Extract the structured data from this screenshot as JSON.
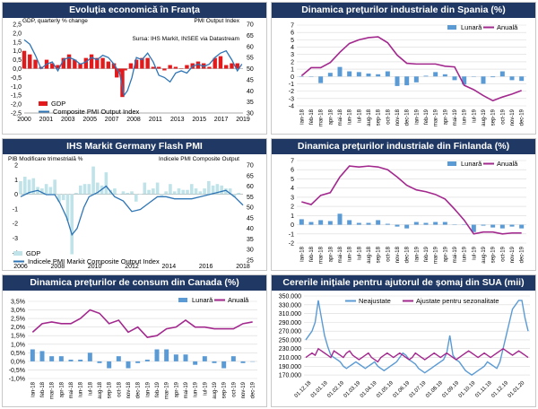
{
  "colors": {
    "title_bg": "#1f3864",
    "title_text": "#ffffff",
    "bar_blue": "#5b9bd5",
    "line_purple": "#a3288e",
    "line_blue": "#2e75b6",
    "bar_red": "#e31a1c",
    "bar_light": "#bfe3e8",
    "grid": "#d9d9d9"
  },
  "panels": {
    "france": {
      "title": "Evoluția economică în Franța"
    },
    "spain": {
      "title": "Dinamica prețurilor industriale din Spania (%)"
    },
    "germany": {
      "title": "IHS Markit Germany Flash PMI"
    },
    "finland": {
      "title": "Dinamica prețurilor industriale din Finlanda (%)"
    },
    "canada": {
      "title": "Dinamica prețurilor de consum din Canada (%)"
    },
    "usa": {
      "title": "Cererile inițiale pentru ajutorul de șomaj din SUA (mii)"
    }
  },
  "chart_data": [
    {
      "id": "france",
      "type": "bar",
      "ylabel_left": "GDP, quarterly % change",
      "ylabel_right": "PMI Output Index",
      "annotation": "Sursa: IHS Markit, INSEE via Datastream",
      "ylim_left": [
        -2.5,
        2.5
      ],
      "ylim_right": [
        30,
        70
      ],
      "yticks_left": [
        "2,5",
        "2,0",
        "1,5",
        "1,0",
        "0,5",
        "0,0",
        "-0,5",
        "-1,0",
        "-1,5",
        "-2,0",
        "-2,5"
      ],
      "yticks_right": [
        "70",
        "65",
        "60",
        "55",
        "50",
        "45",
        "40",
        "35",
        "30"
      ],
      "x_range": [
        2000,
        2019.5
      ],
      "xticks": [
        "2000",
        "2001",
        "2003",
        "2005",
        "2007",
        "2008",
        "2011",
        "2013",
        "2015",
        "2017",
        "2019"
      ],
      "legend": [
        "GDP",
        "Composite PMI Output Index"
      ],
      "series": [
        {
          "name": "GDP",
          "kind": "bar",
          "axis": "left",
          "x": [
            2000,
            2000.5,
            2001,
            2001.5,
            2002,
            2002.5,
            2003,
            2003.5,
            2004,
            2004.5,
            2005,
            2005.5,
            2006,
            2006.5,
            2007,
            2007.5,
            2008,
            2008.25,
            2008.5,
            2008.75,
            2009,
            2009.5,
            2010,
            2010.5,
            2011,
            2011.5,
            2012,
            2012.5,
            2013,
            2013.5,
            2014,
            2014.5,
            2015,
            2015.5,
            2016,
            2016.5,
            2017,
            2017.5,
            2018,
            2018.5,
            2019
          ],
          "values": [
            1.0,
            0.8,
            0.5,
            0.1,
            0.5,
            0.3,
            0.2,
            0.6,
            0.8,
            0.5,
            0.3,
            0.6,
            0.8,
            0.6,
            0.6,
            0.4,
            0.3,
            -0.5,
            -0.2,
            -1.6,
            -0.1,
            0.3,
            0.5,
            0.6,
            0.6,
            0.1,
            0.1,
            -0.1,
            0.2,
            0.1,
            0.0,
            0.2,
            0.3,
            0.4,
            0.3,
            0.1,
            0.6,
            0.7,
            0.2,
            0.3,
            0.3
          ]
        },
        {
          "name": "Composite PMI Output Index",
          "kind": "line",
          "axis": "right",
          "x": [
            2000,
            2000.5,
            2001,
            2001.5,
            2002,
            2002.5,
            2003,
            2003.5,
            2004,
            2004.5,
            2005,
            2005.5,
            2006,
            2006.5,
            2007,
            2007.5,
            2008,
            2008.5,
            2008.9,
            2009.2,
            2009.6,
            2010,
            2010.5,
            2011,
            2011.5,
            2012,
            2012.5,
            2013,
            2013.5,
            2014,
            2014.5,
            2015,
            2015.5,
            2016,
            2016.5,
            2017,
            2017.5,
            2018,
            2018.5,
            2019,
            2019.4
          ],
          "values": [
            63,
            61,
            56,
            50,
            52,
            53,
            49,
            54,
            55,
            54,
            52,
            53,
            55,
            54,
            56,
            55,
            52,
            48,
            38,
            40,
            46,
            55,
            54,
            57,
            53,
            47,
            46,
            44,
            48,
            49,
            48,
            51,
            52,
            51,
            52,
            55,
            57,
            58,
            54,
            49,
            52
          ]
        }
      ]
    },
    {
      "id": "spain",
      "type": "bar",
      "ylim": [
        -4,
        7
      ],
      "yticks": [
        "7",
        "6",
        "5",
        "4",
        "3",
        "2",
        "1",
        "0",
        "-1",
        "-2",
        "-3",
        "-4"
      ],
      "categories": [
        "ian-18",
        "feb-18",
        "mar-18",
        "apr-18",
        "mai-18",
        "iun-18",
        "iul-18",
        "aug-18",
        "sep-18",
        "oct-18",
        "nov-18",
        "dec-18",
        "ian-19",
        "feb-19",
        "mar-19",
        "apr-19",
        "mai-19",
        "iun-19",
        "iul-19",
        "aug-19",
        "sep-19",
        "oct-19",
        "nov-19",
        "dec-19"
      ],
      "legend": [
        "Lunară",
        "Anuală"
      ],
      "series": [
        {
          "name": "Lunară",
          "kind": "bar",
          "values": [
            0.0,
            0.0,
            -0.9,
            0.5,
            1.3,
            0.7,
            0.6,
            0.4,
            0.3,
            0.7,
            -1.3,
            -1.2,
            -0.8,
            0.1,
            0.6,
            0.3,
            -0.5,
            -1.1,
            0.0,
            -1.0,
            -0.1,
            0.7,
            -0.5,
            -0.6
          ]
        },
        {
          "name": "Anuală",
          "kind": "line",
          "values": [
            0.1,
            1.2,
            1.2,
            1.9,
            3.3,
            4.5,
            5.0,
            5.3,
            5.4,
            4.6,
            2.9,
            1.8,
            1.7,
            1.7,
            1.7,
            1.4,
            1.3,
            -1.2,
            -1.8,
            -2.6,
            -3.3,
            -2.8,
            -2.4,
            -1.9
          ]
        }
      ]
    },
    {
      "id": "germany",
      "type": "bar",
      "ylabel_left": "PIB Modificare trimestrială %",
      "ylabel_right": "Indicele PMI Composite Output",
      "ylim_left": [
        -4.5,
        2.0
      ],
      "ylim_right": [
        25,
        70
      ],
      "yticks_left": [
        "2",
        "1",
        "0",
        "-1",
        "-2",
        "-3",
        "-4"
      ],
      "yticks_right": [
        "70",
        "65",
        "60",
        "55",
        "50",
        "45",
        "40",
        "35",
        "30",
        "25"
      ],
      "x_range": [
        2006,
        2019
      ],
      "xticks": [
        "2006",
        "2008",
        "2010",
        "2012",
        "2014",
        "2016",
        "2018"
      ],
      "legend": [
        "GDP",
        "Indicele PMI Markit Composite Output Index"
      ],
      "series": [
        {
          "name": "GDP",
          "kind": "bar",
          "axis": "left",
          "x": [
            2006,
            2006.25,
            2006.5,
            2006.75,
            2007,
            2007.25,
            2007.5,
            2007.75,
            2008,
            2008.25,
            2008.5,
            2008.75,
            2009,
            2009.25,
            2009.5,
            2009.75,
            2010,
            2010.25,
            2010.5,
            2010.75,
            2011,
            2011.25,
            2011.5,
            2011.75,
            2012,
            2012.25,
            2012.5,
            2012.75,
            2013,
            2013.25,
            2013.5,
            2013.75,
            2014,
            2014.25,
            2014.5,
            2014.75,
            2015,
            2015.25,
            2015.5,
            2015.75,
            2016,
            2016.25,
            2016.5,
            2016.75,
            2017,
            2017.25,
            2017.5,
            2017.75,
            2018,
            2018.25,
            2018.5,
            2018.75
          ],
          "values": [
            0.9,
            1.2,
            1.0,
            1.1,
            0.5,
            0.4,
            0.7,
            0.5,
            1.0,
            -0.5,
            -0.4,
            -1.8,
            -4.1,
            0.1,
            0.6,
            0.7,
            0.7,
            1.9,
            0.8,
            0.6,
            1.5,
            0.3,
            0.4,
            0.0,
            0.2,
            0.1,
            0.2,
            -0.5,
            0.0,
            0.8,
            0.3,
            0.4,
            0.8,
            -0.1,
            0.2,
            0.7,
            0.2,
            0.4,
            0.3,
            0.3,
            0.7,
            0.4,
            0.2,
            0.4,
            0.9,
            0.6,
            0.7,
            0.6,
            0.4,
            0.4,
            -0.2,
            0.1
          ]
        },
        {
          "name": "Indicele PMI Markit Composite Output Index",
          "kind": "line",
          "axis": "right",
          "x": [
            2006,
            2006.5,
            2007,
            2007.5,
            2008,
            2008.3,
            2008.7,
            2009,
            2009.3,
            2009.7,
            2010,
            2010.5,
            2011,
            2011.5,
            2012,
            2012.5,
            2013,
            2013.5,
            2014,
            2014.5,
            2015,
            2015.5,
            2016,
            2016.5,
            2017,
            2017.5,
            2018,
            2018.5,
            2019
          ],
          "values": [
            55,
            57,
            58,
            56,
            56,
            52,
            45,
            37,
            40,
            50,
            55,
            57,
            60,
            55,
            53,
            48,
            49,
            52,
            55,
            55,
            54,
            54,
            54,
            55,
            56,
            57,
            58,
            55,
            51
          ]
        }
      ]
    },
    {
      "id": "finland",
      "type": "bar",
      "ylim": [
        -2,
        7
      ],
      "yticks": [
        "7",
        "6",
        "5",
        "4",
        "3",
        "2",
        "1",
        "0",
        "-1",
        "-2"
      ],
      "categories": [
        "ian-18",
        "feb-18",
        "mar-18",
        "apr-18",
        "mai-18",
        "iun-18",
        "iul-18",
        "aug-18",
        "sep-18",
        "oct-18",
        "nov-18",
        "dec-18",
        "ian-19",
        "feb-19",
        "mar-19",
        "apr-19",
        "mai-19",
        "iun-19",
        "iul-19",
        "aug-19",
        "sep-19",
        "oct-19",
        "nov-19",
        "dec-19"
      ],
      "legend": [
        "Lunară",
        "Anuală"
      ],
      "series": [
        {
          "name": "Lunară",
          "kind": "bar",
          "values": [
            0.6,
            0.3,
            0.5,
            0.4,
            1.2,
            0.5,
            0.2,
            0.2,
            0.5,
            0.1,
            -0.2,
            -0.4,
            0.3,
            0.2,
            0.3,
            0.3,
            0.0,
            0.0,
            -0.8,
            -0.1,
            -0.3,
            -0.4,
            -0.2,
            -0.4
          ]
        },
        {
          "name": "Anuală",
          "kind": "line",
          "values": [
            2.5,
            2.2,
            3.2,
            3.5,
            5.2,
            6.4,
            6.3,
            6.4,
            6.3,
            6.0,
            5.2,
            4.3,
            3.8,
            3.6,
            3.3,
            2.8,
            1.7,
            0.5,
            -1.0,
            -0.8,
            -0.8,
            -1.0,
            -0.9,
            -0.9
          ]
        }
      ]
    },
    {
      "id": "canada",
      "type": "bar",
      "ylim": [
        -1.0,
        3.5
      ],
      "yticks": [
        "3,5%",
        "3,0%",
        "2,5%",
        "2,0%",
        "1,5%",
        "1,0%",
        "0,5%",
        "0,0%",
        "-0,5%",
        "-1,0%"
      ],
      "categories": [
        "ian-18",
        "feb-18",
        "mar-18",
        "apr-18",
        "mai-18",
        "iun-18",
        "iul-18",
        "aug-18",
        "sep-18",
        "oct-18",
        "nov-18",
        "dec-18",
        "ian-19",
        "feb-19",
        "mar-19",
        "apr-19",
        "mai-19",
        "iun-19",
        "iul-19",
        "aug-19",
        "sep-19",
        "oct-19",
        "nov-19",
        "dec-19"
      ],
      "legend": [
        "Lunară",
        "Anuală"
      ],
      "series": [
        {
          "name": "Lunară",
          "kind": "bar",
          "values": [
            0.7,
            0.6,
            0.3,
            0.3,
            0.1,
            0.1,
            0.5,
            -0.1,
            -0.4,
            0.3,
            -0.4,
            -0.1,
            0.1,
            0.7,
            0.7,
            0.4,
            0.4,
            -0.2,
            0.3,
            -0.1,
            -0.4,
            0.3,
            -0.1,
            0.0
          ]
        },
        {
          "name": "Anuală",
          "kind": "line",
          "values": [
            1.7,
            2.2,
            2.3,
            2.2,
            2.2,
            2.5,
            3.0,
            2.8,
            2.2,
            2.4,
            1.7,
            2.0,
            1.4,
            1.5,
            1.9,
            2.0,
            2.4,
            2.0,
            2.0,
            1.9,
            1.9,
            1.9,
            2.2,
            2.3
          ]
        }
      ]
    },
    {
      "id": "usa",
      "type": "line",
      "ylim": [
        160000,
        350000
      ],
      "yticks": [
        "350.000",
        "330.000",
        "310.000",
        "290.000",
        "270.000",
        "250.000",
        "230.000",
        "210.000",
        "190.000",
        "170.000"
      ],
      "xticks": [
        "01.12.18",
        "01.01.19",
        "01.02.19",
        "01.03.19",
        "01.04.19",
        "01.05.19",
        "01.06.19",
        "01.07.19",
        "01.08.19",
        "01.09.19",
        "01.10.19",
        "01.11.19",
        "01.12.19",
        "01.01.20"
      ],
      "legend": [
        "Neajustate",
        "Ajustate pentru sezonalitate"
      ],
      "series": [
        {
          "name": "Neajustate",
          "values": [
            250000,
            260000,
            270000,
            290000,
            340000,
            300000,
            260000,
            235000,
            215000,
            210000,
            205000,
            200000,
            190000,
            185000,
            190000,
            195000,
            200000,
            195000,
            190000,
            185000,
            190000,
            195000,
            200000,
            190000,
            185000,
            180000,
            185000,
            190000,
            195000,
            200000,
            210000,
            220000,
            215000,
            205000,
            200000,
            195000,
            185000,
            180000,
            175000,
            180000,
            185000,
            190000,
            195000,
            200000,
            205000,
            220000,
            260000,
            215000,
            205000,
            200000,
            190000,
            180000,
            175000,
            170000,
            175000,
            180000,
            185000,
            190000,
            200000,
            195000,
            190000,
            185000,
            200000,
            230000,
            260000,
            290000,
            320000,
            330000,
            340000,
            340000,
            300000,
            270000
          ]
        },
        {
          "name": "Ajustate pentru sezonalitate",
          "values": [
            210000,
            215000,
            220000,
            215000,
            230000,
            225000,
            220000,
            215000,
            210000,
            225000,
            220000,
            215000,
            210000,
            220000,
            225000,
            215000,
            210000,
            205000,
            210000,
            215000,
            220000,
            210000,
            205000,
            200000,
            210000,
            215000,
            220000,
            215000,
            210000,
            215000,
            220000,
            215000,
            210000,
            205000,
            210000,
            220000,
            215000,
            210000,
            205000,
            210000,
            215000,
            220000,
            215000,
            210000,
            215000,
            220000,
            215000,
            210000,
            205000,
            210000,
            215000,
            220000,
            225000,
            220000,
            215000,
            210000,
            215000,
            220000,
            215000,
            210000,
            215000,
            220000,
            225000,
            230000,
            225000,
            220000,
            215000,
            220000,
            225000,
            220000,
            215000,
            210000
          ]
        }
      ]
    }
  ]
}
